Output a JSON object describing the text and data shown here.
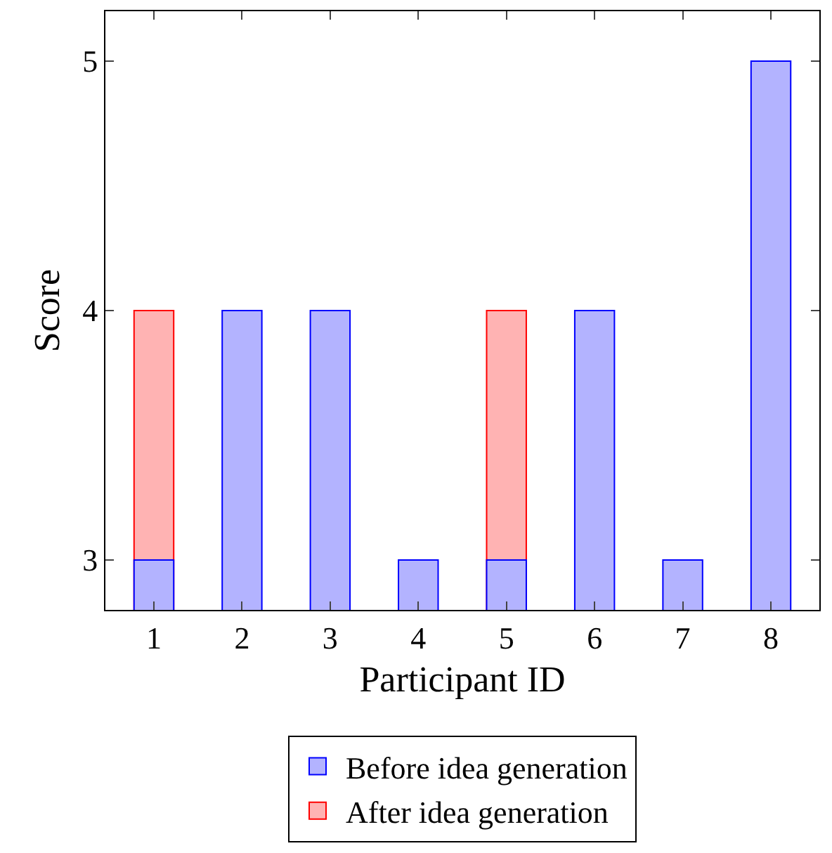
{
  "chart_data": {
    "type": "bar",
    "xlabel": "Participant ID",
    "ylabel": "Score",
    "categories": [
      "1",
      "2",
      "3",
      "4",
      "5",
      "6",
      "7",
      "8"
    ],
    "series": [
      {
        "name": "Before idea generation",
        "color": "#b3b3ff",
        "values": [
          3,
          4,
          4,
          3,
          3,
          4,
          3,
          5
        ]
      },
      {
        "name": "After idea generation",
        "color": "#ffb3b3",
        "values": [
          4,
          null,
          null,
          null,
          4,
          null,
          null,
          null
        ]
      }
    ],
    "ylim": [
      2.8,
      5.2
    ],
    "yticks": [
      3,
      4,
      5
    ],
    "legend": "bottom"
  }
}
